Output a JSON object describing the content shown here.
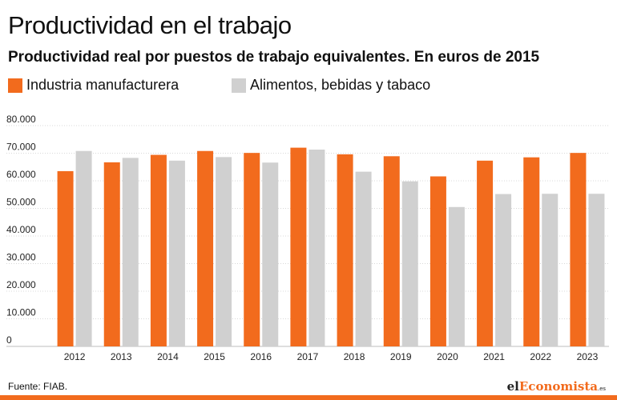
{
  "title": "Productividad en el trabajo",
  "subtitle": "Productividad real por puestos de trabajo equivalentes. En euros de 2015",
  "legend": [
    {
      "label": "Industria manufacturera",
      "color": "#f26b1d"
    },
    {
      "label": "Alimentos, bebidas y tabaco",
      "color": "#d0d0d0"
    }
  ],
  "source": "Fuente: FIAB.",
  "logo": {
    "pre": "el",
    "accent": "Economista",
    "tld": ".es"
  },
  "chart_data": {
    "type": "bar",
    "categories": [
      "2012",
      "2013",
      "2014",
      "2015",
      "2016",
      "2017",
      "2018",
      "2019",
      "2020",
      "2021",
      "2022",
      "2023"
    ],
    "series": [
      {
        "name": "Industria manufacturera",
        "color": "#f26b1d",
        "values": [
          63500,
          66700,
          69400,
          70800,
          70100,
          72000,
          69600,
          68900,
          61600,
          67300,
          68500,
          70100
        ]
      },
      {
        "name": "Alimentos, bebidas y tabaco",
        "color": "#d0d0d0",
        "values": [
          70800,
          68300,
          67300,
          68600,
          66600,
          71300,
          63300,
          59800,
          50500,
          55200,
          55300,
          55300
        ]
      }
    ],
    "y_ticks": [
      "80.000",
      "70.000",
      "60.000",
      "50.000",
      "40.000",
      "30.000",
      "20.000",
      "10.000",
      "0"
    ],
    "ylim": [
      0,
      80000
    ],
    "grid": true
  }
}
